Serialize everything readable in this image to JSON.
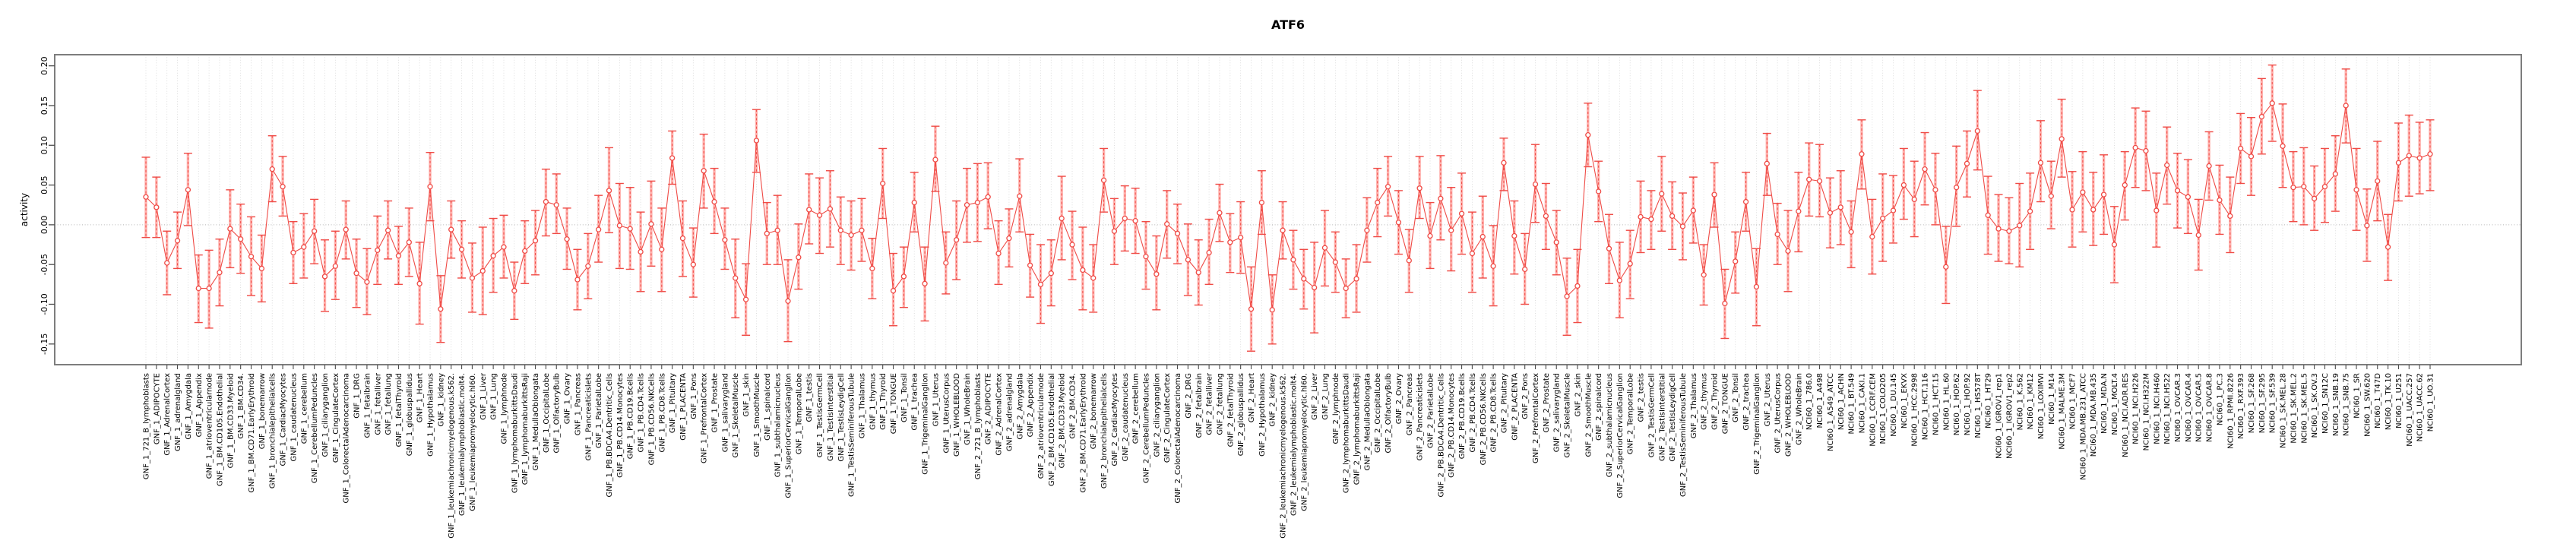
{
  "page": {
    "title": "ATF6"
  },
  "chart_data": {
    "type": "line",
    "subtype": "points-with-error-bars",
    "title": "ATF6",
    "xlabel": "",
    "ylabel": "activity",
    "ylim": [
      -0.176,
      0.214
    ],
    "yticks": [
      0.2,
      0.15,
      0.1,
      0.05,
      0.0,
      -0.05,
      -0.1,
      -0.15
    ],
    "grid": {
      "vertical_per_category": true,
      "horizontal_zero_line": true,
      "style": "dotted"
    },
    "legend_position": "none",
    "series_name": "activity",
    "colors": {
      "point_line": "#ef4b46",
      "ci_band": "#ffb2ae",
      "grid": "#d6d6d6",
      "zero_line": "#b4b4b4",
      "frame": "#7d7d7d",
      "tick": "#4d4d4d",
      "text": "#000000"
    },
    "categories": [
      "GNF_1_721_B_lymphoblasts",
      "GNF_1_ADIPOCYTE",
      "GNF_1_AdrenalCortex",
      "GNF_1_adrenalgland",
      "GNF_1_Amygdala",
      "GNF_1_Appendix",
      "GNF_1_atrioventricularnode",
      "GNF_1_BM.CD105.Endothelial",
      "GNF_1_BM.CD33.Myeloid",
      "GNF_1_BM.CD34.",
      "GNF_1_BM.CD71.EarlyErythroid",
      "GNF_1_bonemarrow",
      "GNF_1_bronchialepithelialcells",
      "GNF_1_CardiacMyocytes",
      "GNF_1_caudatenucleus",
      "GNF_1_cerebellum",
      "GNF_1_CerebellumPeduncles",
      "GNF_1_ciliaryganglion",
      "GNF_1_CingulateCortex",
      "GNF_1_ColorectalAdenocarcinoma",
      "GNF_1_DRG",
      "GNF_1_fetalbrain",
      "GNF_1_fetalliver",
      "GNF_1_fetallung",
      "GNF_1_fetalThyroid",
      "GNF_1_globuspallidus",
      "GNF_1_Heart",
      "GNF_1_Hypothalamus",
      "GNF_1_kidney",
      "GNF_1_leukemiachronicmyelogenous.k562.",
      "GNF_1_leukemialymphoblastic.molt4.",
      "GNF_1_leukemiapromyelocytic.hl60.",
      "GNF_1_Liver",
      "GNF_1_Lung",
      "GNF_1_lymphnode",
      "GNF_1_lymphomaburkittsDaudi",
      "GNF_1_lymphomaburkittsRaji",
      "GNF_1_MedullaOblongata",
      "GNF_1_OccipitalLobe",
      "GNF_1_OlfactoryBulb",
      "GNF_1_Ovary",
      "GNF_1_Pancreas",
      "GNF_1_Pancreaticislets",
      "GNF_1_ParietalLobe",
      "GNF_1_PB.BDCA4.Dentritic_Cells",
      "GNF_1_PB.CD14.Monocytes",
      "GNF_1_PB.CD19.Bcells",
      "GNF_1_PB.CD4.Tcells",
      "GNF_1_PB.CD56.NKCells",
      "GNF_1_PB.CD8.Tcells",
      "GNF_1_Pituitary",
      "GNF_1_PLACENTA",
      "GNF_1_Pons",
      "GNF_1_PrefrontalCortex",
      "GNF_1_Prostate",
      "GNF_1_salivarygland",
      "GNF_1_SkeletalMuscle",
      "GNF_1_skin",
      "GNF_1_SmoothMuscle",
      "GNF_1_spinalcord",
      "GNF_1_subthalamicnucleus",
      "GNF_1_SuperiorCervicalGanglion",
      "GNF_1_TemporalLobe",
      "GNF_1_testis",
      "GNF_1_TestisGermCell",
      "GNF_1_TestisInterstitial",
      "GNF_1_TestisLeydigCell",
      "GNF_1_TestisSeminiferousTubule",
      "GNF_1_Thalamus",
      "GNF_1_thymus",
      "GNF_1_Thyroid",
      "GNF_1_TONGUE",
      "GNF_1_Tonsil",
      "GNF_1_trachea",
      "GNF_1_TrigeminalGanglion",
      "GNF_1_Uterus",
      "GNF_1_UterusCorpus",
      "GNF_1_WHOLEBLOOD",
      "GNF_1_WholeBrain",
      "GNF_2_721_B_lymphoblasts",
      "GNF_2_ADIPOCYTE",
      "GNF_2_AdrenalCortex",
      "GNF_2_adrenalgland",
      "GNF_2_Amygdala",
      "GNF_2_Appendix",
      "GNF_2_atrioventricularnode",
      "GNF_2_BM.CD105.Endothelial",
      "GNF_2_BM.CD33.Myeloid",
      "GNF_2_BM.CD34.",
      "GNF_2_BM.CD71.EarlyErythroid",
      "GNF_2_bonemarrow",
      "GNF_2_bronchialepithelialcells",
      "GNF_2_CardiacMyocytes",
      "GNF_2_caudatenucleus",
      "GNF_2_cerebellum",
      "GNF_2_CerebellumPeduncles",
      "GNF_2_ciliaryganglion",
      "GNF_2_CingulateCortex",
      "GNF_2_ColorectalAdenocarcinoma",
      "GNF_2_DRG",
      "GNF_2_fetalbrain",
      "GNF_2_fetalliver",
      "GNF_2_fetallung",
      "GNF_2_fetalThyroid",
      "GNF_2_globuspallidus",
      "GNF_2_Heart",
      "GNF_2_Hypothalamus",
      "GNF_2_kidney",
      "GNF_2_leukemiachronicmyelogenous.k562.",
      "GNF_2_leukemialymphoblastic.molt4.",
      "GNF_2_leukemiapromyelocytic.hl60.",
      "GNF_2_Liver",
      "GNF_2_Lung",
      "GNF_2_lymphnode",
      "GNF_2_lymphomaburkittsDaudi",
      "GNF_2_lymphomaburkittsRaji",
      "GNF_2_MedullaOblongata",
      "GNF_2_OccipitalLobe",
      "GNF_2_OlfactoryBulb",
      "GNF_2_Ovary",
      "GNF_2_Pancreas",
      "GNF_2_Pancreaticislets",
      "GNF_2_ParietalLobe",
      "GNF_2_PB.BDCA4.Dentritic_Cells",
      "GNF_2_PB.CD14.Monocytes",
      "GNF_2_PB.CD19.Bcells",
      "GNF_2_PB.CD4.Tcells",
      "GNF_2_PB.CD56.NKCells",
      "GNF_2_PB.CD8.Tcells",
      "GNF_2_Pituitary",
      "GNF_2_PLACENTA",
      "GNF_2_Pons",
      "GNF_2_PrefrontalCortex",
      "GNF_2_Prostate",
      "GNF_2_salivarygland",
      "GNF_2_SkeletalMuscle",
      "GNF_2_skin",
      "GNF_2_SmoothMuscle",
      "GNF_2_spinalcord",
      "GNF_2_subthalamicnucleus",
      "GNF_2_SuperiorCervicalGanglion",
      "GNF_2_TemporalLobe",
      "GNF_2_testis",
      "GNF_2_TestisGermCell",
      "GNF_2_TestisInterstitial",
      "GNF_2_TestisLeydigCell",
      "GNF_2_TestisSeminiferousTubule",
      "GNF_2_Thalamus",
      "GNF_2_thymus",
      "GNF_2_Thyroid",
      "GNF_2_TONGUE",
      "GNF_2_Tonsil",
      "GNF_2_trachea",
      "GNF_2_TrigeminalGanglion",
      "GNF_2_Uterus",
      "GNF_2_UterusCorpus",
      "GNF_2_WHOLEBLOOD",
      "GNF_2_WholeBrain",
      "NCI60_1_786.0",
      "NCI60_1_A498",
      "NCI60_1_A549_ATCC",
      "NCI60_1_ACHN",
      "NCI60_1_BT.549",
      "NCI60_1_CAKI.1",
      "NCI60_1_CCRF.CEM",
      "NCI60_1_COLO205",
      "NCI60_1_DU.145",
      "NCI60_1_EKVX",
      "NCI60_1_HCC.2998",
      "NCI60_1_HCT.116",
      "NCI60_1_HCT.15",
      "NCI60_1_HL.60",
      "NCI60_1_HOP.62",
      "NCI60_1_HOP.92",
      "NCI60_1_HS578T",
      "NCI60_1_HT29",
      "NCI60_1_IGROV1_rep1",
      "NCI60_1_IGROV1_rep2",
      "NCI60_1_K.562",
      "NCI60_1_KM12",
      "NCI60_1_LOXIMVI",
      "NCI60_1_M14",
      "NCI60_1_MALME.3M",
      "NCI60_1_MCF7",
      "NCI60_1_MDA.MB.231_ATCC",
      "NCI60_1_MDA.MB.435",
      "NCI60_1_MDA.N",
      "NCI60_1_MOLT.4",
      "NCI60_1_NCI.ADR.RES",
      "NCI60_1_NCI.H226",
      "NCI60_1_NCI.H322M",
      "NCI60_1_NCI.H460",
      "NCI60_1_NCI.H522",
      "NCI60_1_OVCAR.3",
      "NCI60_1_OVCAR.4",
      "NCI60_1_OVCAR.5",
      "NCI60_1_OVCAR.8",
      "NCI60_1_PC.3",
      "NCI60_1_RPMI.8226",
      "NCI60_1_RXF.393",
      "NCI60_1_SF.268",
      "NCI60_1_SF.295",
      "NCI60_1_SF.539",
      "NCI60_1_SK.MEL.28",
      "NCI60_1_SK.MEL.2",
      "NCI60_1_SK.MEL.5",
      "NCI60_1_SK.OV.3",
      "NCI60_1_SN12C",
      "NCI60_1_SNB.19",
      "NCI60_1_SNB.75",
      "NCI60_1_SR",
      "NCI60_1_SW.620",
      "NCI60_1_T47D",
      "NCI60_1_TK.10",
      "NCI60_1_U251",
      "NCI60_1_UACC.257",
      "NCI60_1_UACC.62",
      "NCI60_1_UO.31"
    ],
    "values": [
      0.035,
      0.022,
      -0.048,
      -0.02,
      0.044,
      -0.08,
      -0.08,
      -0.06,
      -0.005,
      -0.018,
      -0.04,
      -0.055,
      0.07,
      0.048,
      -0.035,
      -0.028,
      -0.008,
      -0.065,
      -0.052,
      -0.006,
      -0.061,
      -0.072,
      -0.032,
      -0.007,
      -0.039,
      -0.022,
      -0.074,
      0.048,
      -0.106,
      -0.006,
      -0.031,
      -0.067,
      -0.058,
      -0.039,
      -0.028,
      -0.083,
      -0.033,
      -0.02,
      0.029,
      0.025,
      -0.018,
      -0.069,
      -0.052,
      -0.006,
      0.043,
      -0.001,
      -0.005,
      -0.034,
      0.001,
      -0.031,
      0.084,
      -0.017,
      -0.05,
      0.068,
      0.029,
      -0.019,
      -0.067,
      -0.094,
      0.106,
      -0.011,
      -0.007,
      -0.096,
      -0.041,
      0.019,
      0.012,
      0.02,
      -0.007,
      -0.013,
      -0.007,
      -0.055,
      0.052,
      -0.083,
      -0.065,
      0.028,
      -0.074,
      0.082,
      -0.048,
      -0.019,
      0.025,
      0.028,
      0.035,
      -0.036,
      -0.017,
      0.036,
      -0.051,
      -0.075,
      -0.061,
      0.008,
      -0.025,
      -0.057,
      -0.067,
      0.056,
      -0.008,
      0.008,
      0.005,
      -0.04,
      -0.062,
      0.001,
      -0.011,
      -0.044,
      -0.06,
      -0.035,
      0.015,
      -0.022,
      -0.016,
      -0.106,
      0.028,
      -0.107,
      -0.007,
      -0.044,
      -0.068,
      -0.079,
      -0.029,
      -0.047,
      -0.08,
      -0.068,
      -0.007,
      0.028,
      0.048,
      0.003,
      -0.045,
      0.046,
      -0.014,
      0.033,
      -0.007,
      0.014,
      -0.036,
      -0.015,
      -0.052,
      0.078,
      -0.014,
      -0.056,
      0.051,
      0.011,
      -0.022,
      -0.09,
      -0.077,
      0.113,
      0.042,
      -0.03,
      -0.07,
      -0.049,
      0.01,
      0.007,
      0.039,
      0.011,
      -0.002,
      0.018,
      -0.063,
      0.038,
      -0.099,
      -0.046,
      0.029,
      -0.078,
      0.077,
      -0.012,
      -0.033,
      0.017,
      0.057,
      0.055,
      0.015,
      0.022,
      -0.009,
      0.089,
      -0.015,
      0.008,
      0.018,
      0.05,
      0.032,
      0.07,
      0.044,
      -0.053,
      0.047,
      0.077,
      0.118,
      0.012,
      -0.005,
      -0.008,
      -0.001,
      0.017,
      0.078,
      0.036,
      0.108,
      0.019,
      0.041,
      0.019,
      0.038,
      -0.025,
      0.05,
      0.097,
      0.093,
      0.018,
      0.075,
      0.043,
      0.035,
      -0.013,
      0.074,
      0.031,
      0.011,
      0.096,
      0.086,
      0.136,
      0.153,
      0.099,
      0.047,
      0.048,
      0.033,
      0.048,
      0.064,
      0.15,
      0.044,
      -0.001,
      0.055,
      -0.028,
      0.078,
      0.087,
      0.084,
      0.089
    ],
    "ci_low": [
      -0.016,
      -0.016,
      -0.088,
      -0.055,
      -0.001,
      -0.123,
      -0.13,
      -0.102,
      -0.054,
      -0.061,
      -0.089,
      -0.097,
      0.029,
      0.011,
      -0.074,
      -0.067,
      -0.049,
      -0.109,
      -0.094,
      -0.043,
      -0.104,
      -0.113,
      -0.075,
      -0.043,
      -0.075,
      -0.065,
      -0.125,
      0.005,
      -0.148,
      -0.042,
      -0.067,
      -0.11,
      -0.113,
      -0.085,
      -0.067,
      -0.119,
      -0.074,
      -0.063,
      -0.014,
      -0.011,
      -0.056,
      -0.107,
      -0.093,
      -0.047,
      -0.01,
      -0.055,
      -0.056,
      -0.084,
      -0.052,
      -0.084,
      0.051,
      -0.065,
      -0.091,
      0.021,
      -0.011,
      -0.056,
      -0.117,
      -0.139,
      0.066,
      -0.05,
      -0.05,
      -0.147,
      -0.081,
      -0.024,
      -0.036,
      -0.028,
      -0.05,
      -0.057,
      -0.046,
      -0.093,
      0.008,
      -0.127,
      -0.104,
      -0.009,
      -0.121,
      0.042,
      -0.087,
      -0.069,
      -0.022,
      -0.021,
      -0.005,
      -0.075,
      -0.053,
      -0.009,
      -0.091,
      -0.124,
      -0.102,
      -0.044,
      -0.069,
      -0.107,
      -0.11,
      0.016,
      -0.05,
      -0.033,
      -0.036,
      -0.081,
      -0.107,
      -0.042,
      -0.049,
      -0.089,
      -0.101,
      -0.075,
      -0.021,
      -0.06,
      -0.061,
      -0.159,
      -0.012,
      -0.15,
      -0.043,
      -0.081,
      -0.106,
      -0.136,
      -0.077,
      -0.085,
      -0.117,
      -0.11,
      -0.047,
      -0.015,
      0.011,
      -0.037,
      -0.085,
      0.008,
      -0.055,
      -0.019,
      -0.058,
      -0.037,
      -0.085,
      -0.067,
      -0.102,
      0.043,
      -0.062,
      -0.1,
      0.003,
      -0.031,
      -0.063,
      -0.139,
      -0.123,
      0.073,
      0.004,
      -0.074,
      -0.117,
      -0.093,
      -0.035,
      -0.031,
      -0.008,
      -0.031,
      -0.044,
      -0.023,
      -0.101,
      -0.003,
      -0.143,
      -0.086,
      -0.008,
      -0.127,
      0.037,
      -0.05,
      -0.084,
      -0.034,
      0.011,
      0.01,
      -0.029,
      -0.025,
      -0.054,
      0.045,
      -0.062,
      -0.046,
      -0.023,
      0.007,
      -0.015,
      0.025,
      0.0,
      -0.099,
      -0.002,
      0.035,
      0.069,
      -0.037,
      -0.046,
      -0.049,
      -0.053,
      -0.031,
      0.029,
      -0.005,
      0.06,
      -0.028,
      -0.009,
      -0.026,
      -0.012,
      -0.073,
      0.006,
      0.047,
      0.043,
      -0.028,
      0.026,
      -0.004,
      -0.011,
      -0.057,
      0.031,
      -0.012,
      -0.035,
      0.052,
      0.037,
      0.089,
      0.105,
      0.047,
      0.004,
      0.0,
      -0.007,
      0.003,
      0.017,
      0.103,
      -0.007,
      -0.046,
      0.005,
      -0.07,
      0.03,
      0.036,
      0.039,
      0.043
    ],
    "ci_high": [
      0.085,
      0.06,
      -0.008,
      0.016,
      0.09,
      -0.038,
      -0.032,
      -0.018,
      0.044,
      0.026,
      0.01,
      -0.013,
      0.112,
      0.086,
      0.004,
      0.014,
      0.032,
      -0.019,
      -0.008,
      0.03,
      -0.018,
      -0.03,
      0.011,
      0.03,
      -0.002,
      0.021,
      -0.022,
      0.091,
      -0.064,
      0.03,
      0.005,
      -0.023,
      -0.003,
      0.008,
      0.012,
      -0.047,
      0.005,
      0.018,
      0.07,
      0.064,
      0.021,
      -0.031,
      -0.011,
      0.037,
      0.097,
      0.052,
      0.047,
      0.016,
      0.055,
      0.021,
      0.118,
      0.03,
      -0.004,
      0.114,
      0.071,
      0.021,
      -0.018,
      -0.049,
      0.145,
      0.028,
      0.037,
      -0.044,
      0.001,
      0.064,
      0.059,
      0.068,
      0.035,
      0.03,
      0.033,
      -0.017,
      0.096,
      -0.036,
      -0.028,
      0.066,
      -0.028,
      0.124,
      -0.009,
      0.03,
      0.071,
      0.077,
      0.078,
      0.005,
      0.02,
      0.083,
      -0.012,
      -0.025,
      -0.019,
      0.061,
      0.017,
      -0.003,
      -0.025,
      0.096,
      0.033,
      0.049,
      0.046,
      0.004,
      -0.014,
      0.043,
      0.026,
      0.001,
      -0.019,
      0.007,
      0.051,
      0.014,
      0.029,
      -0.053,
      0.068,
      -0.063,
      0.029,
      -0.007,
      -0.031,
      -0.022,
      0.018,
      -0.009,
      -0.043,
      -0.025,
      0.034,
      0.071,
      0.086,
      0.043,
      -0.006,
      0.086,
      0.028,
      0.087,
      0.047,
      0.065,
      0.016,
      0.036,
      -0.001,
      0.109,
      0.03,
      -0.011,
      0.101,
      0.052,
      0.018,
      -0.042,
      -0.031,
      0.153,
      0.08,
      0.013,
      -0.022,
      -0.007,
      0.055,
      0.043,
      0.086,
      0.054,
      0.04,
      0.06,
      -0.025,
      0.078,
      -0.056,
      -0.009,
      0.066,
      -0.03,
      0.115,
      0.027,
      0.018,
      0.066,
      0.103,
      0.101,
      0.059,
      0.068,
      0.03,
      0.132,
      0.032,
      0.064,
      0.062,
      0.096,
      0.08,
      0.116,
      0.09,
      -0.002,
      0.099,
      0.118,
      0.169,
      0.061,
      0.038,
      0.034,
      0.052,
      0.065,
      0.131,
      0.08,
      0.158,
      0.067,
      0.092,
      0.066,
      0.088,
      0.023,
      0.092,
      0.147,
      0.143,
      0.065,
      0.123,
      0.09,
      0.082,
      0.032,
      0.117,
      0.075,
      0.06,
      0.14,
      0.135,
      0.184,
      0.201,
      0.152,
      0.092,
      0.097,
      0.074,
      0.096,
      0.112,
      0.196,
      0.096,
      0.045,
      0.105,
      0.013,
      0.128,
      0.138,
      0.129,
      0.132
    ]
  }
}
